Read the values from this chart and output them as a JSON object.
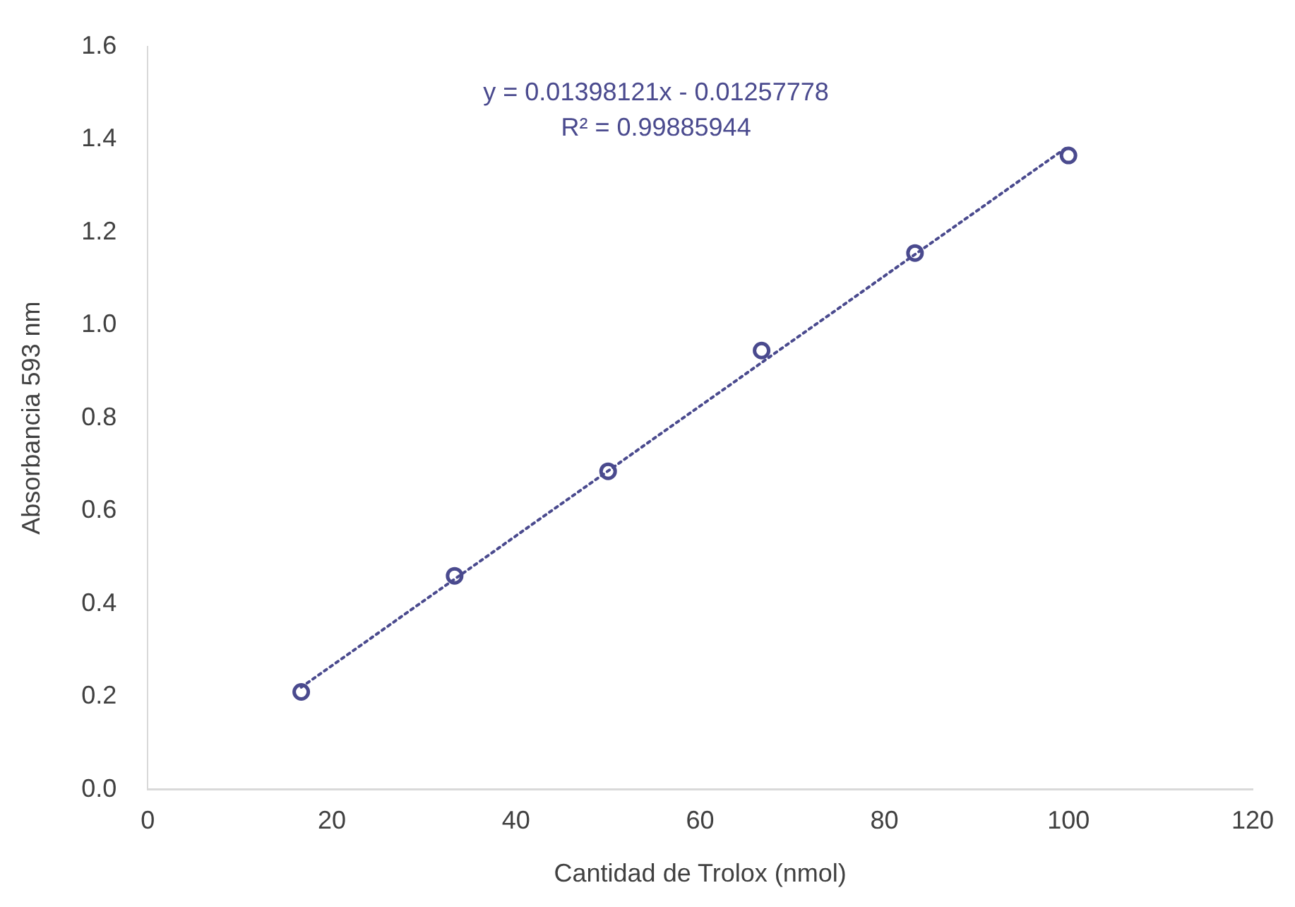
{
  "chart_data": {
    "type": "scatter",
    "xlabel": "Cantidad de Trolox (nmol)",
    "ylabel": "Absorbancia 593 nm",
    "xlim": [
      0,
      120
    ],
    "xticks": [
      0,
      20,
      40,
      60,
      80,
      100,
      120
    ],
    "ylim": [
      0,
      1.6
    ],
    "yticks": [
      {
        "value": 0,
        "label": "0.0"
      },
      0.2,
      0.4,
      0.6,
      0.8,
      {
        "value": 1,
        "label": "1.0"
      },
      1.2,
      1.4,
      1.6
    ],
    "grid": false,
    "legend": false,
    "annotations": [
      "y = 0.01398121x - 0.01257778",
      "R² = 0.99885944"
    ],
    "series": [
      {
        "color": "#4a4a8e",
        "marker": "circle",
        "x": [
          16.67,
          33.33,
          50,
          66.67,
          83.33,
          100
        ],
        "values": [
          0.21,
          0.46,
          0.685,
          0.945,
          1.155,
          1.365
        ]
      },
      {
        "type": "line",
        "color": "#4a4a8e",
        "line_style": "dotted",
        "marker": "none",
        "x": [
          16.67,
          100
        ],
        "values": [
          0.22,
          1.385
        ]
      }
    ]
  }
}
